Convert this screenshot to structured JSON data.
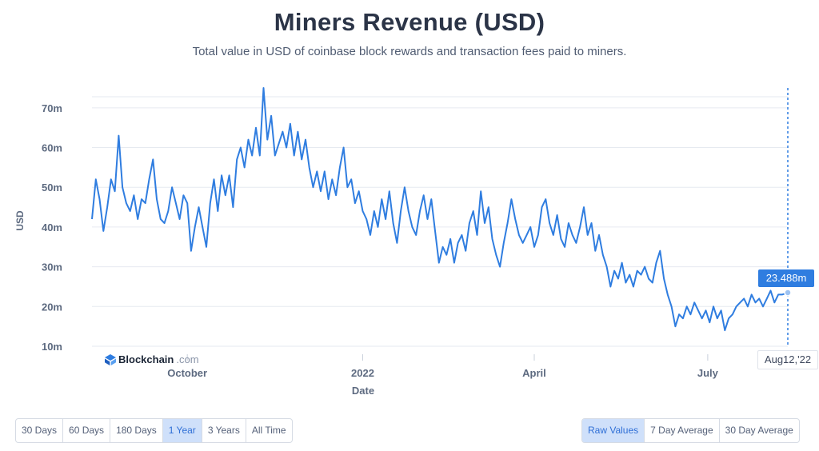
{
  "header": {
    "title": "Miners Revenue (USD)",
    "subtitle": "Total value in USD of coinbase block rewards and transaction fees paid to miners."
  },
  "brand": {
    "name": "Blockchain",
    "suffix": ".com",
    "icon": "blockchain-logo-icon"
  },
  "tooltip": {
    "value_label": "23.488m",
    "date_label": "Aug12,'22"
  },
  "range_buttons": {
    "items": [
      "30 Days",
      "60 Days",
      "180 Days",
      "1 Year",
      "3 Years",
      "All Time"
    ],
    "active": "1 Year"
  },
  "average_buttons": {
    "items": [
      "Raw Values",
      "7 Day Average",
      "30 Day Average"
    ],
    "active": "Raw Values"
  },
  "colors": {
    "line": "#2f7de0",
    "grid": "#e6eaf0",
    "accent": "#2f7de0",
    "active_bg": "#cfe0fa"
  },
  "chart_data": {
    "type": "line",
    "title": "Miners Revenue (USD)",
    "xlabel": "Date",
    "ylabel": "USD",
    "x_ticks": [
      "October",
      "2022",
      "April",
      "July"
    ],
    "y_ticks": [
      "10m",
      "20m",
      "30m",
      "40m",
      "50m",
      "60m",
      "70m"
    ],
    "ylim": [
      10,
      75
    ],
    "xlim": [
      "2021-08-12",
      "2022-08-12"
    ],
    "grid": true,
    "series": [
      {
        "color": "#2f7de0",
        "unit": "millions USD",
        "points": [
          [
            "2021-08-12",
            42
          ],
          [
            "2021-08-14",
            52
          ],
          [
            "2021-08-16",
            47
          ],
          [
            "2021-08-18",
            39
          ],
          [
            "2021-08-20",
            45
          ],
          [
            "2021-08-22",
            52
          ],
          [
            "2021-08-24",
            49
          ],
          [
            "2021-08-26",
            63
          ],
          [
            "2021-08-28",
            50
          ],
          [
            "2021-08-30",
            46
          ],
          [
            "2021-09-01",
            44
          ],
          [
            "2021-09-03",
            48
          ],
          [
            "2021-09-05",
            42
          ],
          [
            "2021-09-07",
            47
          ],
          [
            "2021-09-09",
            46
          ],
          [
            "2021-09-11",
            52
          ],
          [
            "2021-09-13",
            57
          ],
          [
            "2021-09-15",
            47
          ],
          [
            "2021-09-17",
            42
          ],
          [
            "2021-09-19",
            41
          ],
          [
            "2021-09-21",
            44
          ],
          [
            "2021-09-23",
            50
          ],
          [
            "2021-09-25",
            46
          ],
          [
            "2021-09-27",
            42
          ],
          [
            "2021-09-29",
            48
          ],
          [
            "2021-10-01",
            46
          ],
          [
            "2021-10-03",
            34
          ],
          [
            "2021-10-05",
            40
          ],
          [
            "2021-10-07",
            45
          ],
          [
            "2021-10-09",
            40
          ],
          [
            "2021-10-11",
            35
          ],
          [
            "2021-10-13",
            46
          ],
          [
            "2021-10-15",
            52
          ],
          [
            "2021-10-17",
            44
          ],
          [
            "2021-10-19",
            53
          ],
          [
            "2021-10-21",
            48
          ],
          [
            "2021-10-23",
            53
          ],
          [
            "2021-10-25",
            45
          ],
          [
            "2021-10-27",
            57
          ],
          [
            "2021-10-29",
            60
          ],
          [
            "2021-10-31",
            55
          ],
          [
            "2021-11-02",
            62
          ],
          [
            "2021-11-04",
            58
          ],
          [
            "2021-11-06",
            65
          ],
          [
            "2021-11-08",
            58
          ],
          [
            "2021-11-10",
            75
          ],
          [
            "2021-11-12",
            62
          ],
          [
            "2021-11-14",
            68
          ],
          [
            "2021-11-16",
            58
          ],
          [
            "2021-11-18",
            61
          ],
          [
            "2021-11-20",
            64
          ],
          [
            "2021-11-22",
            60
          ],
          [
            "2021-11-24",
            66
          ],
          [
            "2021-11-26",
            58
          ],
          [
            "2021-11-28",
            64
          ],
          [
            "2021-11-30",
            57
          ],
          [
            "2021-12-02",
            62
          ],
          [
            "2021-12-04",
            55
          ],
          [
            "2021-12-06",
            50
          ],
          [
            "2021-12-08",
            54
          ],
          [
            "2021-12-10",
            49
          ],
          [
            "2021-12-12",
            54
          ],
          [
            "2021-12-14",
            47
          ],
          [
            "2021-12-16",
            52
          ],
          [
            "2021-12-18",
            48
          ],
          [
            "2021-12-20",
            55
          ],
          [
            "2021-12-22",
            60
          ],
          [
            "2021-12-24",
            50
          ],
          [
            "2021-12-26",
            52
          ],
          [
            "2021-12-28",
            46
          ],
          [
            "2021-12-30",
            49
          ],
          [
            "2022-01-01",
            44
          ],
          [
            "2022-01-03",
            42
          ],
          [
            "2022-01-05",
            38
          ],
          [
            "2022-01-07",
            44
          ],
          [
            "2022-01-09",
            40
          ],
          [
            "2022-01-11",
            47
          ],
          [
            "2022-01-13",
            42
          ],
          [
            "2022-01-15",
            49
          ],
          [
            "2022-01-17",
            41
          ],
          [
            "2022-01-19",
            36
          ],
          [
            "2022-01-21",
            44
          ],
          [
            "2022-01-23",
            50
          ],
          [
            "2022-01-25",
            44
          ],
          [
            "2022-01-27",
            40
          ],
          [
            "2022-01-29",
            38
          ],
          [
            "2022-01-31",
            44
          ],
          [
            "2022-02-02",
            48
          ],
          [
            "2022-02-04",
            42
          ],
          [
            "2022-02-06",
            47
          ],
          [
            "2022-02-08",
            39
          ],
          [
            "2022-02-10",
            31
          ],
          [
            "2022-02-12",
            35
          ],
          [
            "2022-02-14",
            33
          ],
          [
            "2022-02-16",
            37
          ],
          [
            "2022-02-18",
            31
          ],
          [
            "2022-02-20",
            36
          ],
          [
            "2022-02-22",
            38
          ],
          [
            "2022-02-24",
            34
          ],
          [
            "2022-02-26",
            41
          ],
          [
            "2022-02-28",
            44
          ],
          [
            "2022-03-02",
            38
          ],
          [
            "2022-03-04",
            49
          ],
          [
            "2022-03-06",
            41
          ],
          [
            "2022-03-08",
            45
          ],
          [
            "2022-03-10",
            37
          ],
          [
            "2022-03-12",
            33
          ],
          [
            "2022-03-14",
            30
          ],
          [
            "2022-03-16",
            36
          ],
          [
            "2022-03-18",
            41
          ],
          [
            "2022-03-20",
            47
          ],
          [
            "2022-03-22",
            42
          ],
          [
            "2022-03-24",
            38
          ],
          [
            "2022-03-26",
            36
          ],
          [
            "2022-03-28",
            38
          ],
          [
            "2022-03-30",
            40
          ],
          [
            "2022-04-01",
            35
          ],
          [
            "2022-04-03",
            38
          ],
          [
            "2022-04-05",
            45
          ],
          [
            "2022-04-07",
            47
          ],
          [
            "2022-04-09",
            41
          ],
          [
            "2022-04-11",
            38
          ],
          [
            "2022-04-13",
            43
          ],
          [
            "2022-04-15",
            37
          ],
          [
            "2022-04-17",
            35
          ],
          [
            "2022-04-19",
            41
          ],
          [
            "2022-04-21",
            38
          ],
          [
            "2022-04-23",
            36
          ],
          [
            "2022-04-25",
            40
          ],
          [
            "2022-04-27",
            45
          ],
          [
            "2022-04-29",
            38
          ],
          [
            "2022-05-01",
            41
          ],
          [
            "2022-05-03",
            34
          ],
          [
            "2022-05-05",
            38
          ],
          [
            "2022-05-07",
            33
          ],
          [
            "2022-05-09",
            30
          ],
          [
            "2022-05-11",
            25
          ],
          [
            "2022-05-13",
            29
          ],
          [
            "2022-05-15",
            27
          ],
          [
            "2022-05-17",
            31
          ],
          [
            "2022-05-19",
            26
          ],
          [
            "2022-05-21",
            28
          ],
          [
            "2022-05-23",
            25
          ],
          [
            "2022-05-25",
            29
          ],
          [
            "2022-05-27",
            28
          ],
          [
            "2022-05-29",
            30
          ],
          [
            "2022-05-31",
            27
          ],
          [
            "2022-06-02",
            26
          ],
          [
            "2022-06-04",
            31
          ],
          [
            "2022-06-06",
            34
          ],
          [
            "2022-06-08",
            27
          ],
          [
            "2022-06-10",
            23
          ],
          [
            "2022-06-12",
            20
          ],
          [
            "2022-06-14",
            15
          ],
          [
            "2022-06-16",
            18
          ],
          [
            "2022-06-18",
            17
          ],
          [
            "2022-06-20",
            20
          ],
          [
            "2022-06-22",
            18
          ],
          [
            "2022-06-24",
            21
          ],
          [
            "2022-06-26",
            19
          ],
          [
            "2022-06-28",
            17
          ],
          [
            "2022-06-30",
            19
          ],
          [
            "2022-07-02",
            16
          ],
          [
            "2022-07-04",
            20
          ],
          [
            "2022-07-06",
            17
          ],
          [
            "2022-07-08",
            19
          ],
          [
            "2022-07-10",
            14
          ],
          [
            "2022-07-12",
            17
          ],
          [
            "2022-07-14",
            18
          ],
          [
            "2022-07-16",
            20
          ],
          [
            "2022-07-18",
            21
          ],
          [
            "2022-07-20",
            22
          ],
          [
            "2022-07-22",
            20
          ],
          [
            "2022-07-24",
            23
          ],
          [
            "2022-07-26",
            21
          ],
          [
            "2022-07-28",
            22
          ],
          [
            "2022-07-30",
            20
          ],
          [
            "2022-08-01",
            22
          ],
          [
            "2022-08-03",
            24
          ],
          [
            "2022-08-05",
            21
          ],
          [
            "2022-08-07",
            23
          ],
          [
            "2022-08-09",
            23
          ],
          [
            "2022-08-12",
            23.488
          ]
        ]
      }
    ]
  }
}
